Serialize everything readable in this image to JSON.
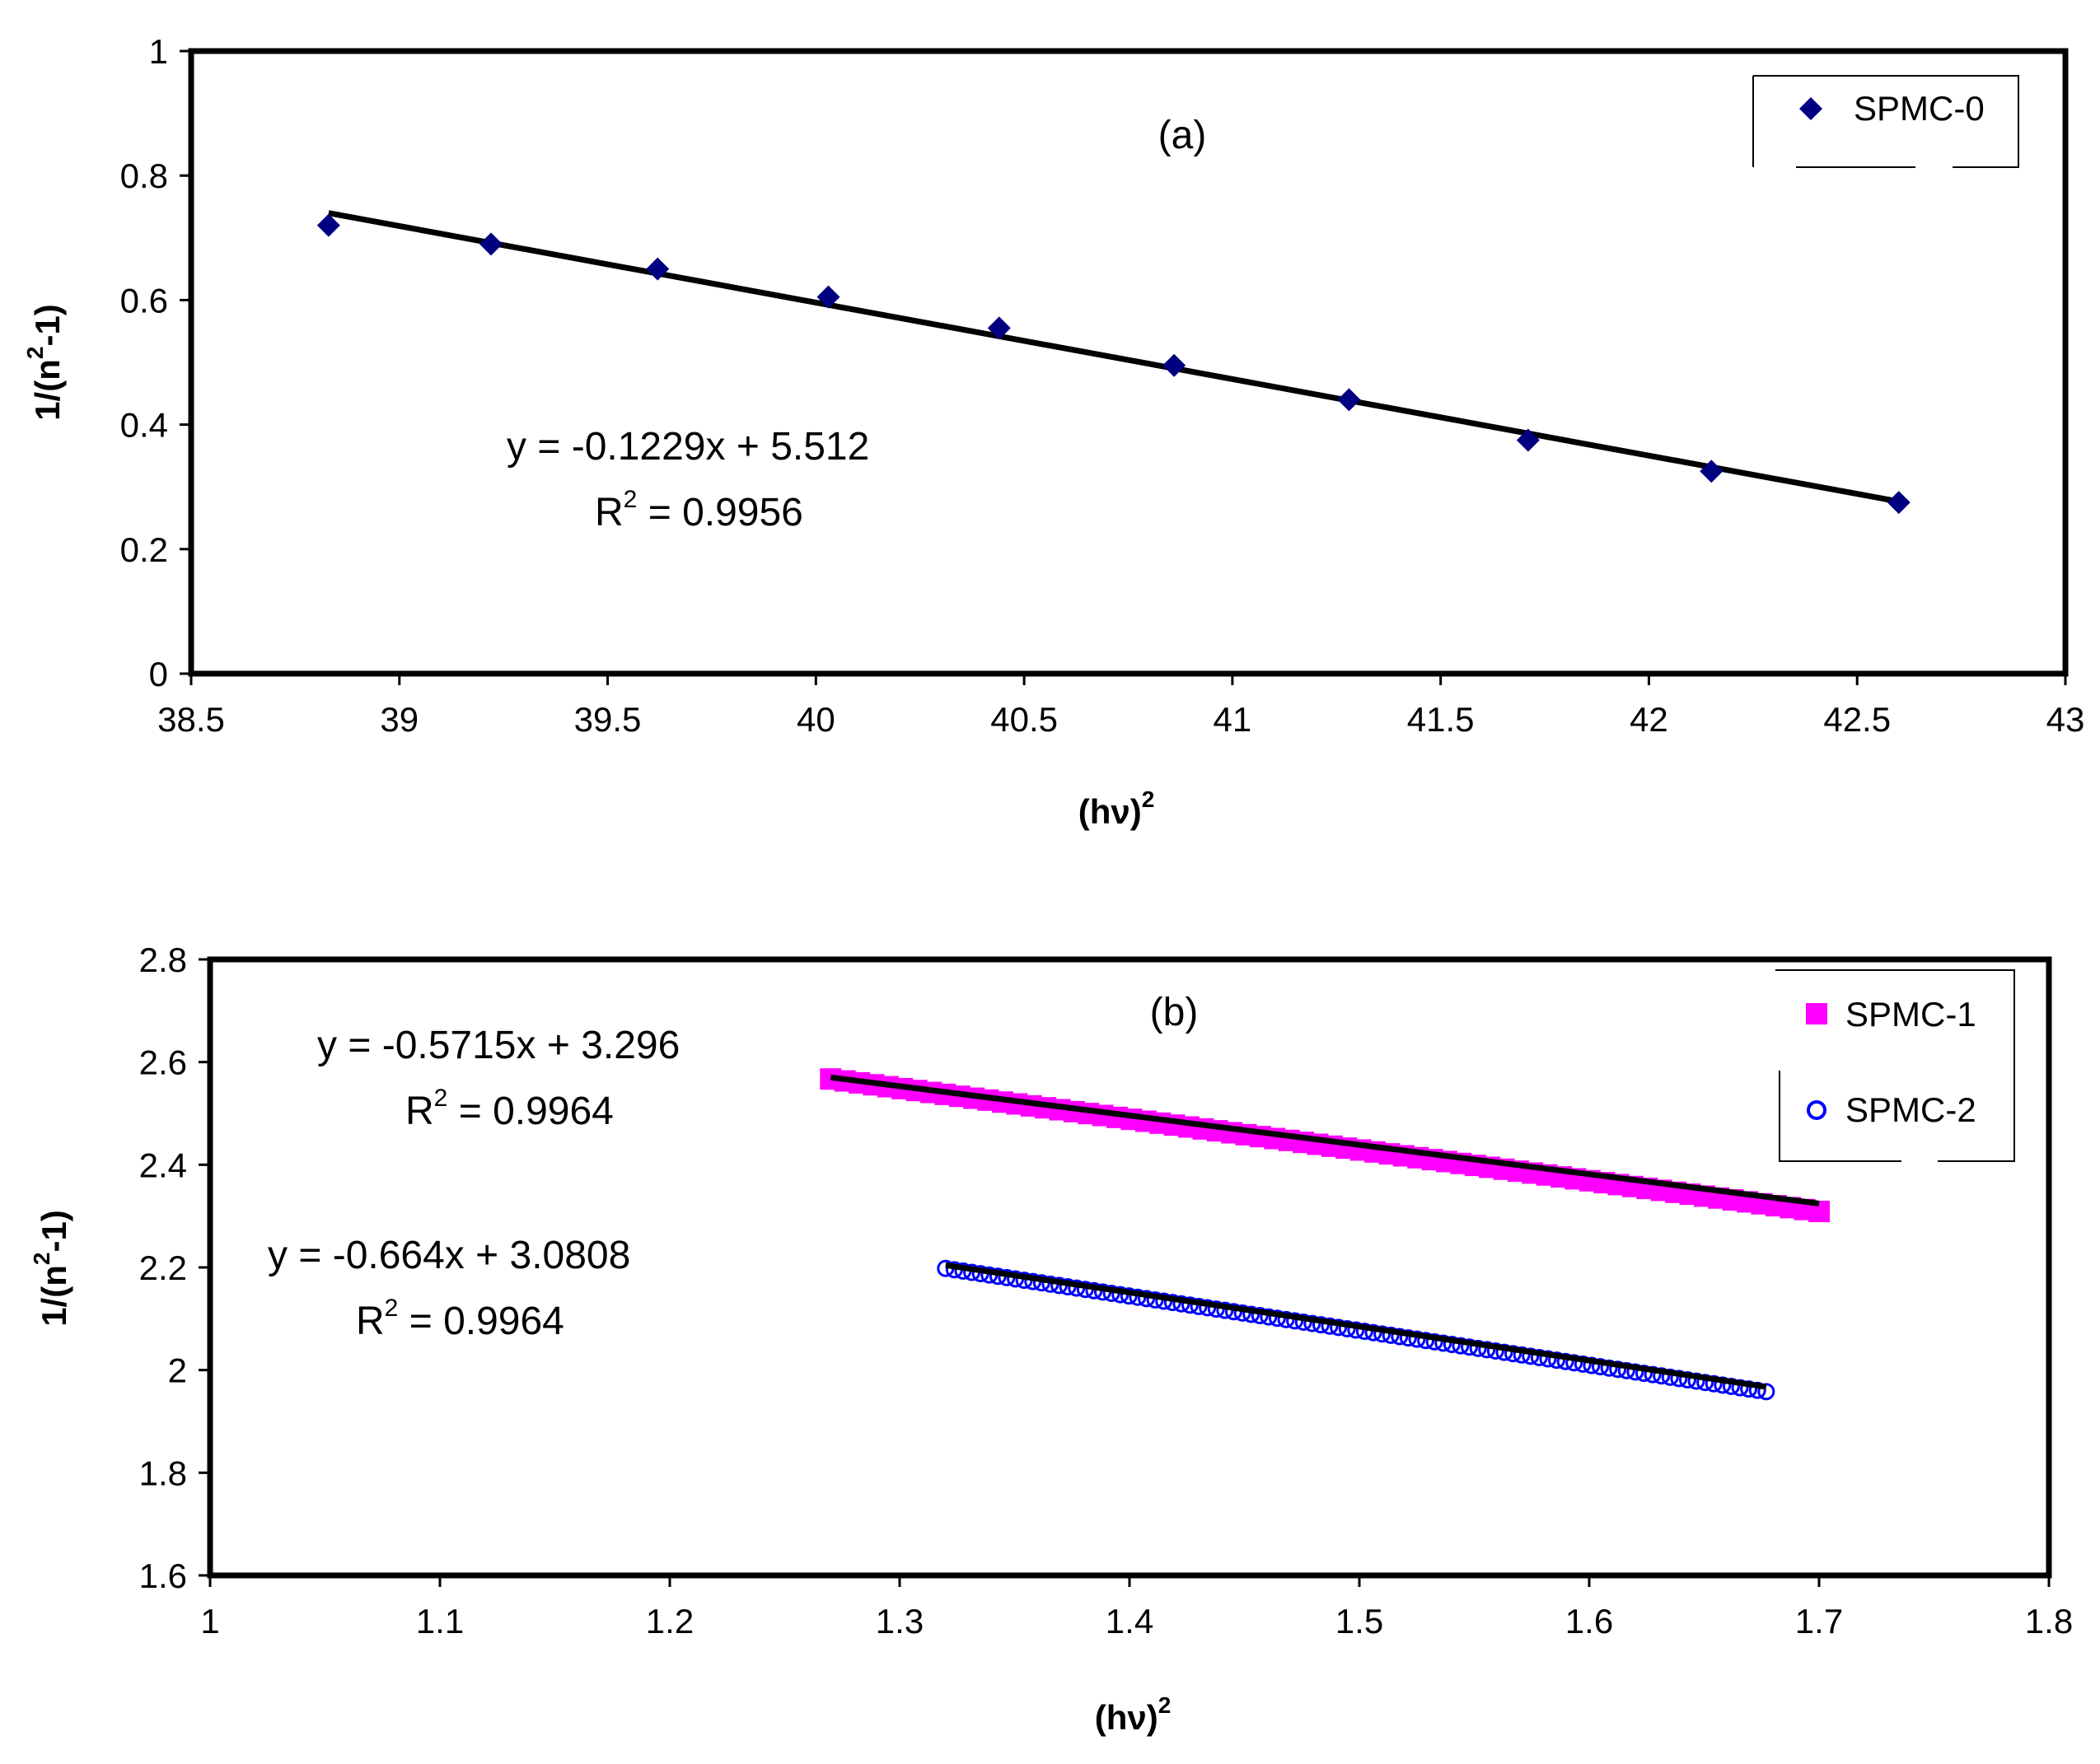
{
  "chart_data": [
    {
      "id": "a",
      "type": "scatter",
      "annotation": "(a)",
      "xlabel_base": "(hν)",
      "xlabel_sup": "2",
      "ylabel_base": "1/(n",
      "ylabel_sup": "2",
      "ylabel_tail": "-1)",
      "xlim": [
        38.5,
        43
      ],
      "ylim": [
        0,
        1
      ],
      "xticks": [
        38.5,
        39,
        39.5,
        40,
        40.5,
        41,
        41.5,
        42,
        42.5,
        43
      ],
      "yticks": [
        0,
        0.2,
        0.4,
        0.6,
        0.8,
        1
      ],
      "xtick_labels": [
        "38.5",
        "39",
        "39.5",
        "40",
        "40.5",
        "41",
        "41.5",
        "42",
        "42.5",
        "43"
      ],
      "ytick_labels": [
        "0",
        "0.2",
        "0.4",
        "0.6",
        "0.8",
        "1"
      ],
      "series": [
        {
          "name": "SPMC-0",
          "marker": "diamond",
          "color": "#000080",
          "x": [
            38.83,
            39.22,
            39.62,
            40.03,
            40.44,
            40.86,
            41.28,
            41.71,
            42.15,
            42.6
          ],
          "y": [
            0.72,
            0.69,
            0.65,
            0.605,
            0.555,
            0.495,
            0.44,
            0.375,
            0.325,
            0.275
          ]
        }
      ],
      "trendlines": [
        {
          "slope": -0.1229,
          "intercept": 5.512,
          "x_range": [
            38.83,
            42.6
          ],
          "color": "#000000",
          "equation": "y = -0.1229x + 5.512",
          "r2_base": "R",
          "r2_sup": "2",
          "r2_tail": " = 0.9956"
        }
      ],
      "legend_position": "top-right"
    },
    {
      "id": "b",
      "type": "scatter",
      "annotation": "(b)",
      "xlabel_base": "(hν)",
      "xlabel_sup": "2",
      "ylabel_base": "1/(n",
      "ylabel_sup": "2",
      "ylabel_tail": "-1)",
      "xlim": [
        1,
        1.8
      ],
      "ylim": [
        1.6,
        2.8
      ],
      "xticks": [
        1,
        1.1,
        1.2,
        1.3,
        1.4,
        1.5,
        1.6,
        1.7,
        1.8
      ],
      "yticks": [
        1.6,
        1.8,
        2,
        2.2,
        2.4,
        2.6,
        2.8
      ],
      "xtick_labels": [
        "1",
        "1.1",
        "1.2",
        "1.3",
        "1.4",
        "1.5",
        "1.6",
        "1.7",
        "1.8"
      ],
      "ytick_labels": [
        "1.6",
        "1.8",
        "2",
        "2.2",
        "2.4",
        "2.6",
        "2.8"
      ],
      "series": [
        {
          "name": "SPMC-1",
          "marker": "square",
          "color": "#ff00ff",
          "x_range": [
            1.27,
            1.7
          ],
          "y_range": [
            2.567,
            2.309
          ],
          "count": 70
        },
        {
          "name": "SPMC-2",
          "marker": "circle-open",
          "color": "#0000ff",
          "x_range": [
            1.32,
            1.677
          ],
          "y_range": [
            2.198,
            1.958
          ],
          "count": 95
        }
      ],
      "trendlines": [
        {
          "slope": -0.5715,
          "intercept": 3.296,
          "x_range": [
            1.27,
            1.7
          ],
          "color": "#000000",
          "equation": "y = -0.5715x + 3.296",
          "r2_base": "R",
          "r2_sup": "2",
          "r2_tail": " = 0.9964"
        },
        {
          "slope": -0.664,
          "intercept": 3.0808,
          "x_range": [
            1.32,
            1.677
          ],
          "color": "#000000",
          "equation": "y = -0.664x + 3.0808",
          "r2_base": "R",
          "r2_sup": "2",
          "r2_tail": " = 0.9964"
        }
      ],
      "legend_position": "top-right"
    }
  ]
}
